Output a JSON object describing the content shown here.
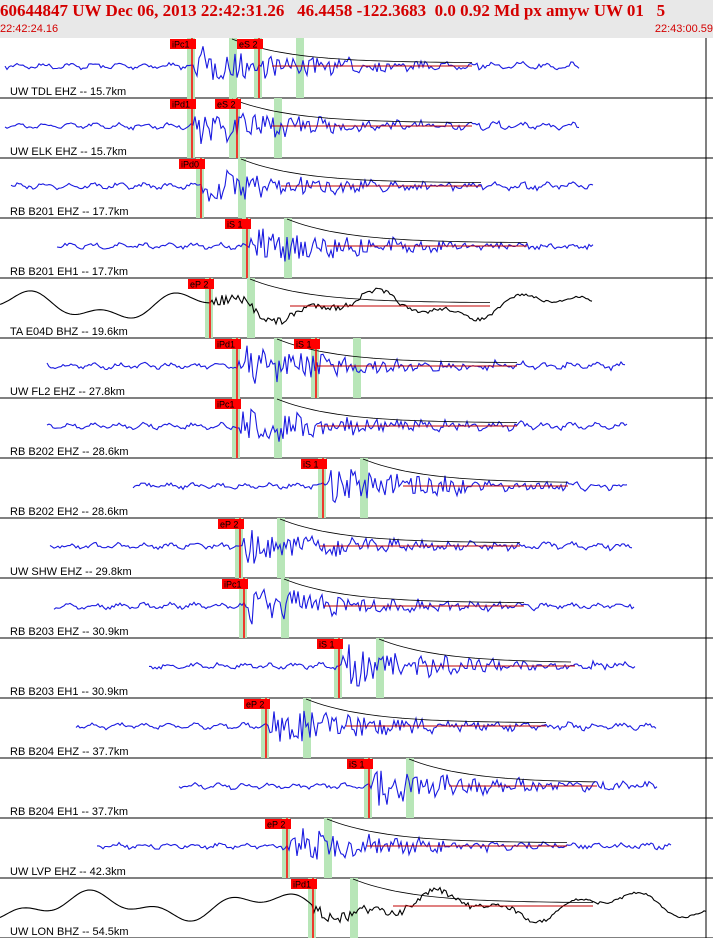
{
  "header": {
    "title": "60644847 UW Dec 06, 2013 22:42:31.26   46.4458 -122.3683  0.0 0.92 Md px amyw UW 01   5",
    "start_time": "22:42:24.16",
    "end_time": "22:43:00.59"
  },
  "chart_data": {
    "type": "line",
    "title": "60644847 UW Dec 06, 2013 22:42:31.26   46.4458 -122.3683  0.0 0.92 Md px amyw UW 01   5",
    "x_range_labels": [
      "22:42:24.16",
      "22:43:00.59"
    ],
    "colors": {
      "trace_main": "#1a1ae0",
      "trace_broadband": "#000000",
      "pick": "#ff0000",
      "window": "#b8e6b8",
      "coda": "#c00000"
    },
    "traces": [
      {
        "label": "UW TDL EHZ -- 15.7km",
        "color": "blue",
        "picks": [
          {
            "label": "iPc1",
            "t": 0.272
          },
          {
            "label": "eS 2",
            "t": 0.367
          }
        ],
        "end": 0.82
      },
      {
        "label": "UW ELK EHZ -- 15.7km",
        "color": "blue",
        "picks": [
          {
            "label": "iPd1",
            "t": 0.272
          },
          {
            "label": "eS 2",
            "t": 0.335
          }
        ],
        "end": 0.82
      },
      {
        "label": "RB B201 EHZ -- 17.7km",
        "color": "blue",
        "picks": [
          {
            "label": "iPd0",
            "t": 0.284
          }
        ],
        "end": 0.84
      },
      {
        "label": "RB B201 EH1 -- 17.7km",
        "color": "blue",
        "picks": [
          {
            "label": "iS 1",
            "t": 0.35
          }
        ],
        "end": 0.84
      },
      {
        "label": "TA E04D BHZ -- 19.6km",
        "color": "black",
        "picks": [
          {
            "label": "eP 2",
            "t": 0.298
          }
        ],
        "end": 0.84
      },
      {
        "label": "UW FL2 EHZ -- 27.8km",
        "color": "blue",
        "picks": [
          {
            "label": "iPd1",
            "t": 0.335
          },
          {
            "label": "iS 1",
            "t": 0.448
          }
        ],
        "end": 0.885
      },
      {
        "label": "RB B202 EHZ -- 28.6km",
        "color": "blue",
        "picks": [
          {
            "label": "iPc1",
            "t": 0.335
          }
        ],
        "end": 0.89
      },
      {
        "label": "RB B202 EH2 -- 28.6km",
        "color": "blue",
        "picks": [
          {
            "label": "iS 1",
            "t": 0.458
          }
        ],
        "end": 0.89
      },
      {
        "label": "UW SHW EHZ -- 29.8km",
        "color": "blue",
        "picks": [
          {
            "label": "eP 2",
            "t": 0.34
          }
        ],
        "end": 0.895
      },
      {
        "label": "RB B203 EHZ -- 30.9km",
        "color": "blue",
        "picks": [
          {
            "label": "iPc1",
            "t": 0.345
          }
        ],
        "end": 0.9
      },
      {
        "label": "RB B203 EH1 -- 30.9km",
        "color": "blue",
        "picks": [
          {
            "label": "iS 1",
            "t": 0.48
          }
        ],
        "end": 0.9
      },
      {
        "label": "RB B204 EHZ -- 37.7km",
        "color": "blue",
        "picks": [
          {
            "label": "eP 2",
            "t": 0.377
          }
        ],
        "end": 0.93
      },
      {
        "label": "RB B204 EH1 -- 37.7km",
        "color": "blue",
        "picks": [
          {
            "label": "iS 1",
            "t": 0.523
          }
        ],
        "end": 0.93
      },
      {
        "label": "UW LVP EHZ -- 42.3km",
        "color": "blue",
        "picks": [
          {
            "label": "eP 2",
            "t": 0.406
          }
        ],
        "end": 0.95
      },
      {
        "label": "UW LON BHZ -- 54.5km",
        "color": "black",
        "picks": [
          {
            "label": "iPd1",
            "t": 0.443
          }
        ],
        "end": 1.0
      }
    ]
  }
}
